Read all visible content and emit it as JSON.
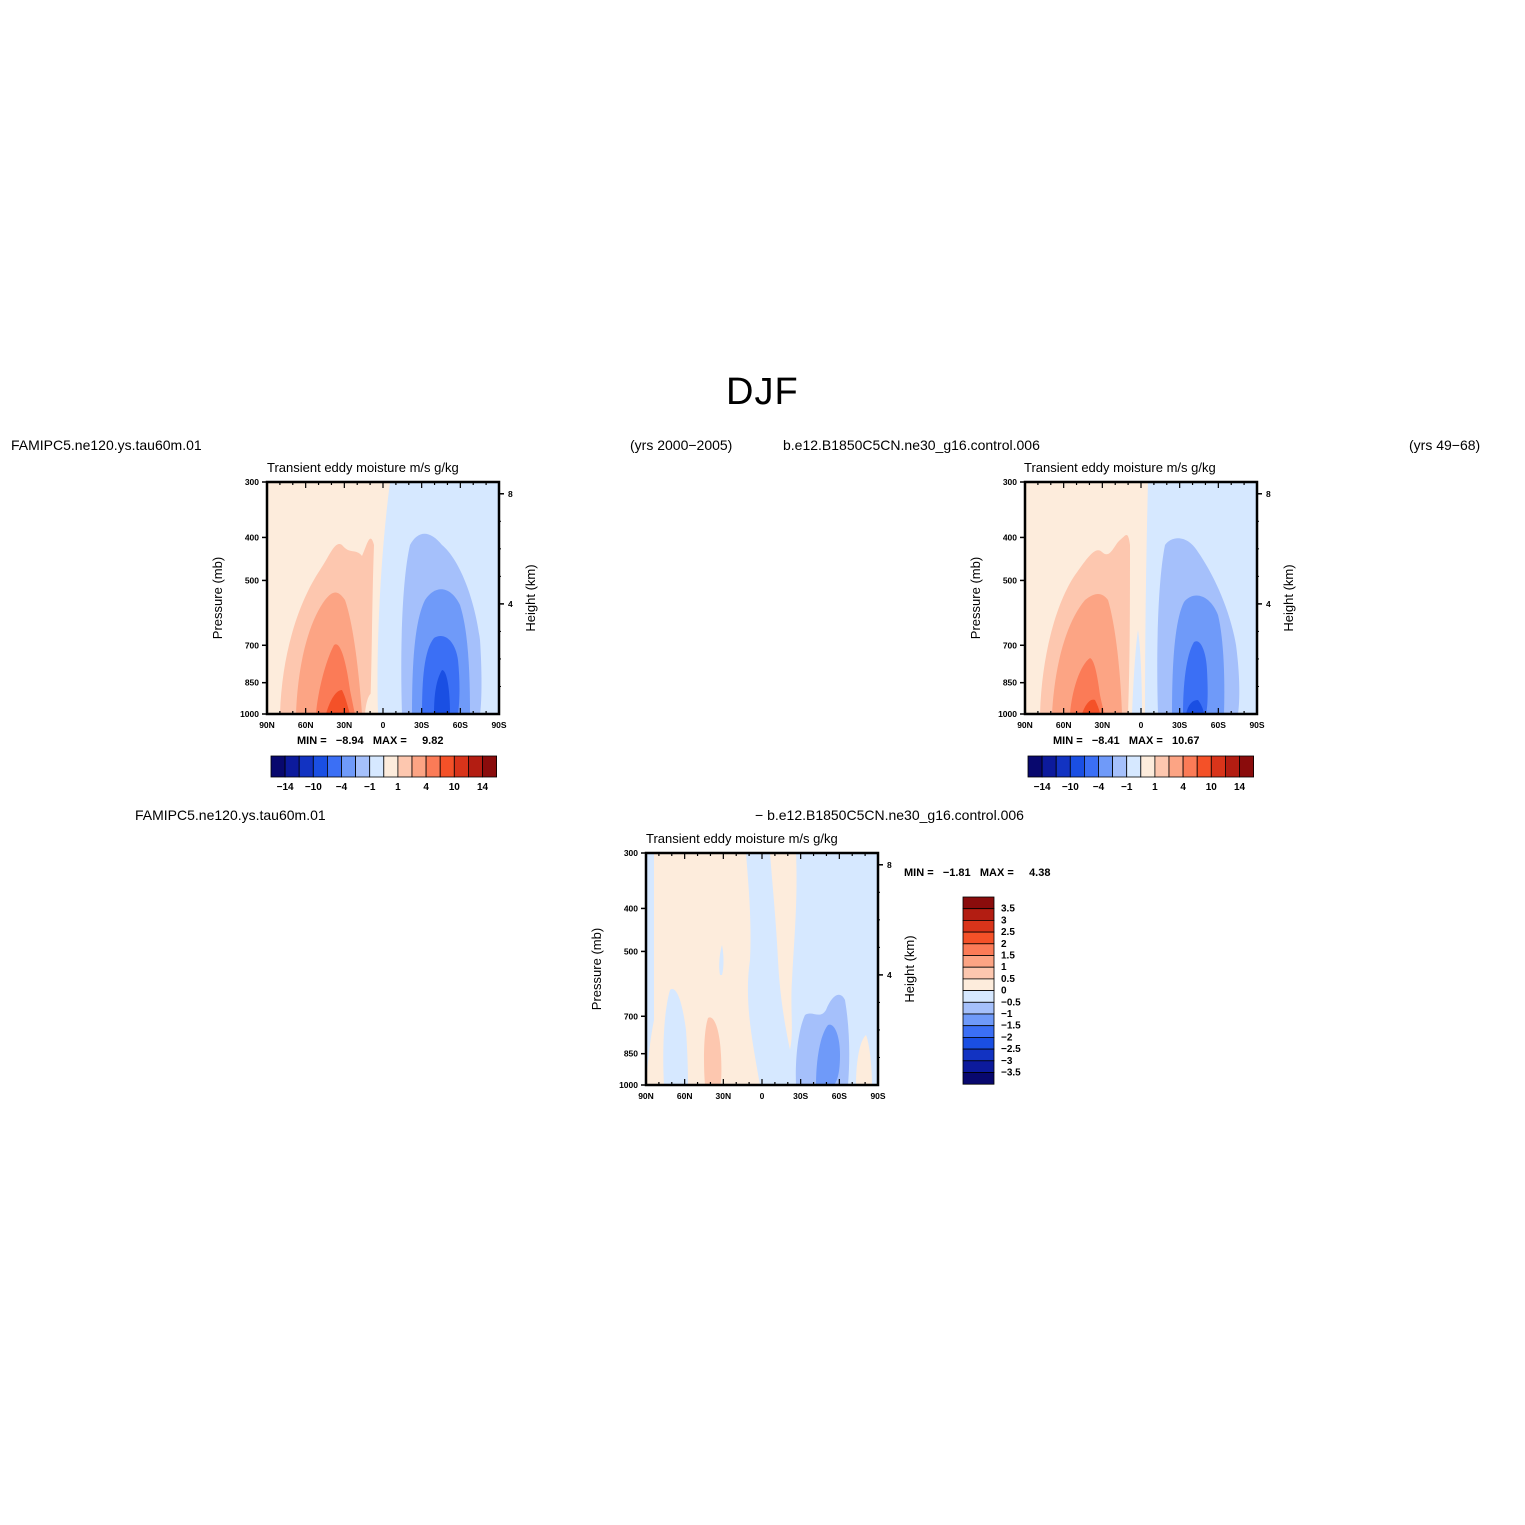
{
  "figure": {
    "title": "DJF"
  },
  "colors": {
    "diverging": [
      "#08086e",
      "#0c1a9c",
      "#1233c2",
      "#1a4fe3",
      "#3b6ff5",
      "#6f9af9",
      "#a5c0fb",
      "#d6e8ff",
      "#fdecdc",
      "#fdc7af",
      "#fca484",
      "#fb7b57",
      "#f45128",
      "#d9341a",
      "#b31d12",
      "#8a0c0c"
    ]
  },
  "panels": [
    {
      "id": "top-left",
      "case_name": "FAMIPC5.ne120.ys.tau60m.01",
      "years": "(yrs 2000−2005)",
      "title": "Transient  eddy  moisture m/s  g/kg",
      "min_label": "MIN =",
      "min_value": "−8.94",
      "max_label": "MAX =",
      "max_value": "9.82"
    },
    {
      "id": "top-right",
      "case_name": "b.e12.B1850C5CN.ne30_g16.control.006",
      "years": "(yrs 49−68)",
      "title": "Transient  eddy  moisture m/s  g/kg",
      "min_label": "MIN =",
      "min_value": "−8.41",
      "max_label": "MAX =",
      "max_value": "10.67"
    },
    {
      "id": "bottom",
      "case_name": "FAMIPC5.ne120.ys.tau60m.01",
      "case_name_2": "−  b.e12.B1850C5CN.ne30_g16.control.006",
      "title": "Transient  eddy  moisture m/s  g/kg",
      "min_label": "MIN =",
      "min_value": "−1.81",
      "max_label": "MAX =",
      "max_value": "4.38"
    }
  ],
  "axes": {
    "x_ticks": [
      "90N",
      "60N",
      "30N",
      "0",
      "30S",
      "60S",
      "90S"
    ],
    "y_ticks": [
      "300",
      "400",
      "500",
      "700",
      "850",
      "1000"
    ],
    "y_label": "Pressure  (mb)",
    "y2_ticks": [
      "8",
      "4"
    ],
    "y2_label": "Height  (km)"
  },
  "colorbars": {
    "top_labels": [
      "−14",
      "−10",
      "−4",
      "−1",
      "1",
      "4",
      "10",
      "14"
    ],
    "bottom_labels": [
      "3.5",
      "3",
      "2.5",
      "2",
      "1.5",
      "1",
      "0.5",
      "0",
      "−0.5",
      "−1",
      "−1.5",
      "−2",
      "−2.5",
      "−3",
      "−3.5"
    ]
  },
  "chart_data": [
    {
      "type": "heatmap",
      "title": "Transient  eddy  moisture m/s  g/kg",
      "x": [
        "90N",
        "60N",
        "30N",
        "0",
        "30S",
        "60S",
        "90S"
      ],
      "y": [
        300,
        400,
        500,
        700,
        850,
        1000
      ],
      "ylabel": "Pressure  (mb)",
      "y2label": "Height  (km)",
      "min": -8.94,
      "max": 9.82,
      "levels": [
        -14,
        -12,
        -10,
        -8,
        -6,
        -4,
        -2,
        -1,
        0,
        1,
        2,
        4,
        6,
        8,
        10,
        12,
        14
      ]
    },
    {
      "type": "heatmap",
      "title": "Transient  eddy  moisture m/s  g/kg",
      "x": [
        "90N",
        "60N",
        "30N",
        "0",
        "30S",
        "60S",
        "90S"
      ],
      "y": [
        300,
        400,
        500,
        700,
        850,
        1000
      ],
      "ylabel": "Pressure  (mb)",
      "y2label": "Height  (km)",
      "min": -8.41,
      "max": 10.67,
      "levels": [
        -14,
        -12,
        -10,
        -8,
        -6,
        -4,
        -2,
        -1,
        0,
        1,
        2,
        4,
        6,
        8,
        10,
        12,
        14
      ]
    },
    {
      "type": "heatmap",
      "title": "Transient  eddy  moisture m/s  g/kg",
      "x": [
        "90N",
        "60N",
        "30N",
        "0",
        "30S",
        "60S",
        "90S"
      ],
      "y": [
        300,
        400,
        500,
        700,
        850,
        1000
      ],
      "ylabel": "Pressure  (mb)",
      "y2label": "Height  (km)",
      "min": -1.81,
      "max": 4.38,
      "levels": [
        -3.5,
        -3,
        -2.5,
        -2,
        -1.5,
        -1,
        -0.5,
        0,
        0.5,
        1,
        1.5,
        2,
        2.5,
        3,
        3.5
      ]
    }
  ]
}
